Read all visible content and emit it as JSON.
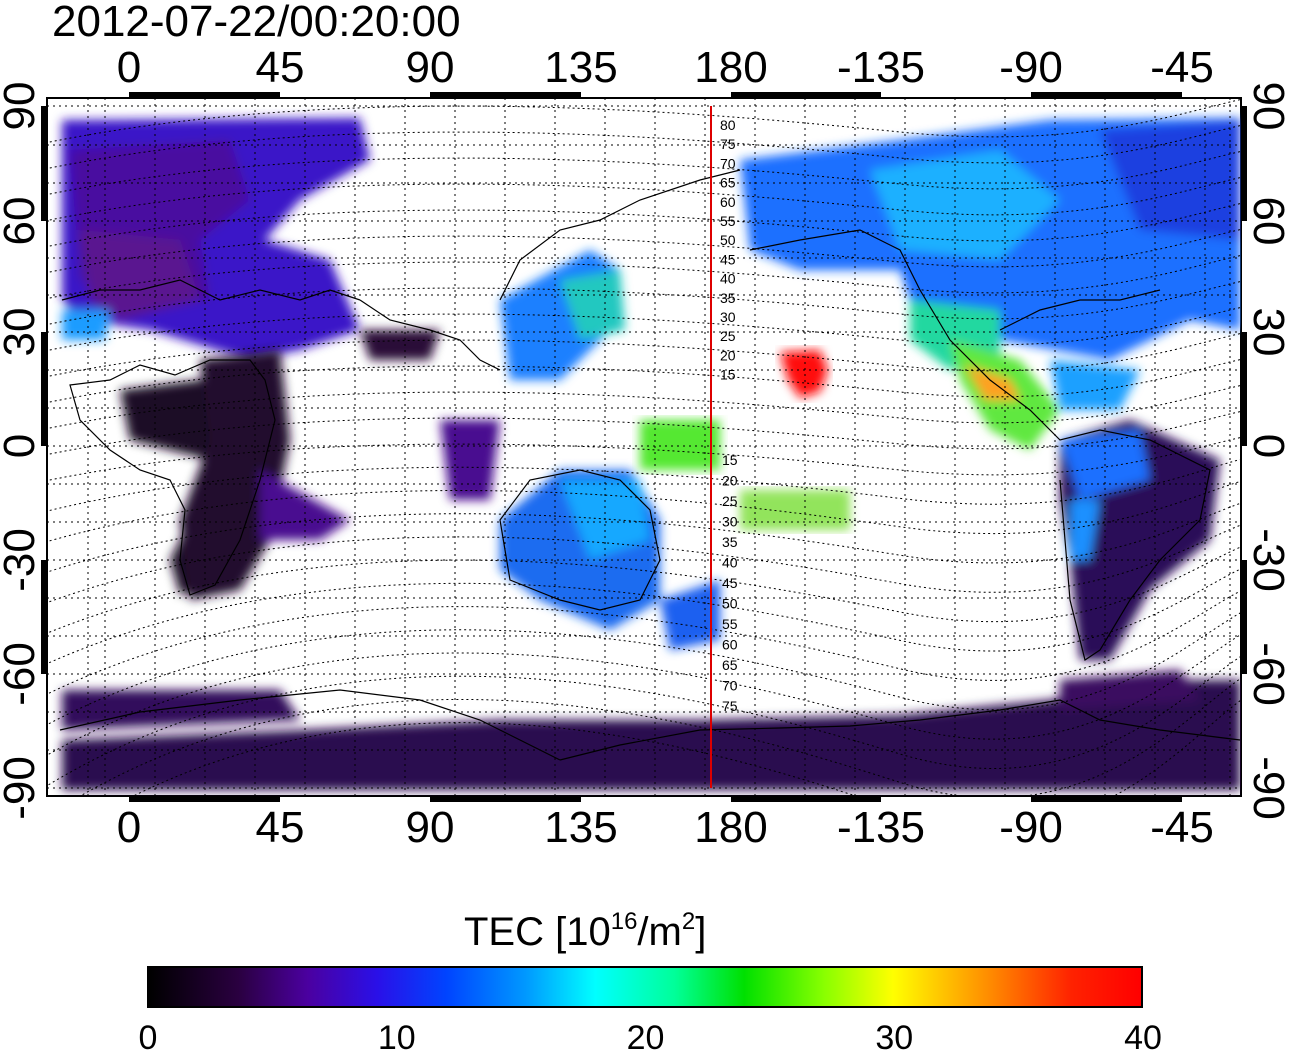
{
  "timestamp": "2012-07-22/00:20:00",
  "map": {
    "lon_top_labels": [
      "0",
      "45",
      "90",
      "135",
      "180",
      "-135",
      "-90",
      "-45"
    ],
    "lon_bottom_labels": [
      "0",
      "45",
      "90",
      "135",
      "180",
      "-135",
      "-90",
      "-45"
    ],
    "lat_left_labels": [
      "90",
      "60",
      "30",
      "0",
      "-30",
      "-60",
      "-90"
    ],
    "lat_right_labels": [
      "90",
      "60",
      "30",
      "0",
      "-30",
      "-60",
      "-90"
    ],
    "meridian_line_color": "#dd0000",
    "meridian_labels_north": [
      "80",
      "75",
      "70",
      "65",
      "60",
      "55",
      "50",
      "45",
      "40",
      "35",
      "30",
      "25",
      "20",
      "15"
    ],
    "meridian_labels_south": [
      "15",
      "20",
      "25",
      "30",
      "35",
      "40",
      "45",
      "50",
      "55",
      "60",
      "65",
      "70",
      "75"
    ]
  },
  "colorbar": {
    "title_main": "TEC  [10",
    "title_exp": "16",
    "title_mid": "/m",
    "title_exp2": "2",
    "title_end": "]",
    "ticks": [
      "0",
      "10",
      "20",
      "30",
      "40"
    ],
    "range": [
      0,
      40
    ]
  }
}
